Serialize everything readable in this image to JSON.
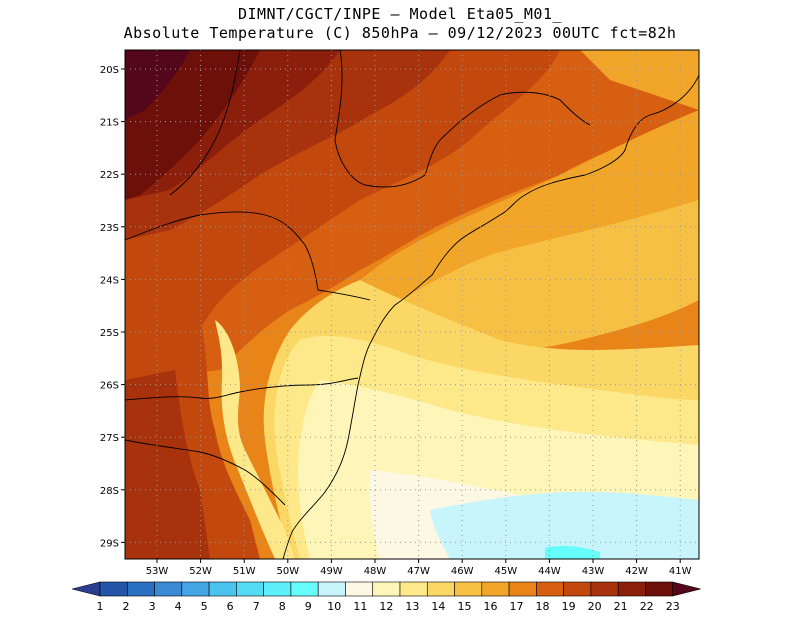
{
  "header": {
    "line1": "DIMNT/CGCT/INPE –  Model Eta05_M01_",
    "line2": "Absolute Temperature (C) 850hPa –  09/12/2023 00UTC fct=82h"
  },
  "axes": {
    "lat_labels": [
      "20S",
      "21S",
      "22S",
      "23S",
      "24S",
      "25S",
      "26S",
      "27S",
      "28S",
      "29S"
    ],
    "lon_labels": [
      "53W",
      "52W",
      "51W",
      "50W",
      "49W",
      "48W",
      "47W",
      "46W",
      "45W",
      "44W",
      "43W",
      "42W",
      "41W"
    ]
  },
  "colorbar": {
    "labels": [
      "1",
      "2",
      "3",
      "4",
      "5",
      "6",
      "7",
      "8",
      "9",
      "10",
      "11",
      "12",
      "13",
      "14",
      "15",
      "16",
      "17",
      "18",
      "19",
      "20",
      "21",
      "22",
      "23"
    ],
    "colors": [
      "#2b3d8f",
      "#2355a8",
      "#2a70c2",
      "#3a8ad6",
      "#45a6e6",
      "#4cc3ef",
      "#55dcf5",
      "#5ef0fa",
      "#67fcfc",
      "#c8f4fc",
      "#fdf8e4",
      "#fef6b8",
      "#fde98a",
      "#fbd866",
      "#f6c044",
      "#f2a629",
      "#e98419",
      "#d75f12",
      "#c2480e",
      "#a8320c",
      "#8c1f0b",
      "#6e100a",
      "#54061a"
    ],
    "unit": "C"
  }
}
